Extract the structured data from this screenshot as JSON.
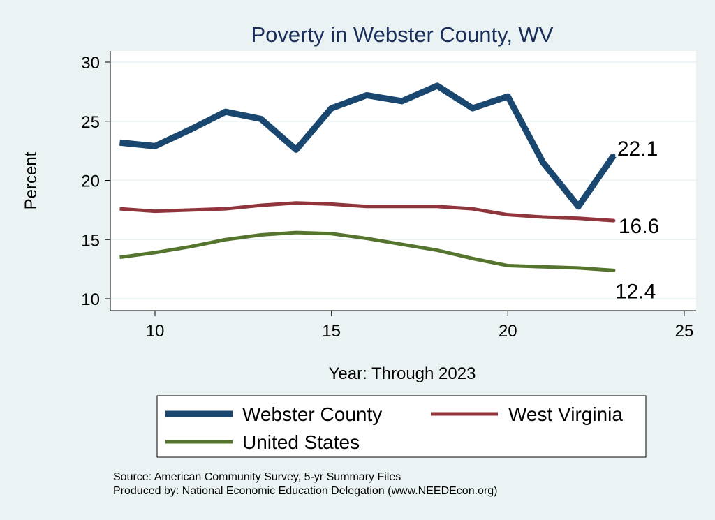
{
  "chart_data": {
    "type": "line",
    "title": "Poverty in Webster County, WV",
    "xlabel": "Year: Through 2023",
    "ylabel": "Percent",
    "xlim": [
      8.5,
      25.5
    ],
    "ylim": [
      9.0,
      30.9
    ],
    "xticks": [
      10,
      15,
      20,
      25
    ],
    "yticks": [
      10,
      15,
      20,
      25,
      30
    ],
    "grid": true,
    "legend_position": "bottom",
    "x": [
      9,
      10,
      11,
      12,
      13,
      14,
      15,
      16,
      17,
      18,
      19,
      20,
      21,
      22,
      23
    ],
    "series": [
      {
        "name": "Webster County",
        "color": "#1a476f",
        "values": [
          23.2,
          22.9,
          24.3,
          25.8,
          25.2,
          22.6,
          26.1,
          27.2,
          26.7,
          28.0,
          26.1,
          27.1,
          21.5,
          17.8,
          22.1
        ],
        "end_label": "22.1"
      },
      {
        "name": "West Virginia",
        "color": "#90353b",
        "values": [
          17.6,
          17.4,
          17.5,
          17.6,
          17.9,
          18.1,
          18.0,
          17.8,
          17.8,
          17.8,
          17.6,
          17.1,
          16.9,
          16.8,
          16.6
        ],
        "end_label": "16.6"
      },
      {
        "name": "United States",
        "color": "#55752f",
        "values": [
          13.5,
          13.9,
          14.4,
          15.0,
          15.4,
          15.6,
          15.5,
          15.1,
          14.6,
          14.1,
          13.4,
          12.8,
          12.7,
          12.6,
          12.4
        ],
        "end_label": "12.4"
      }
    ]
  },
  "notes": [
    "Source: American Community Survey, 5-yr Summary Files",
    "Produced by: National Economic Education Delegation (www.NEEDEcon.org)"
  ]
}
